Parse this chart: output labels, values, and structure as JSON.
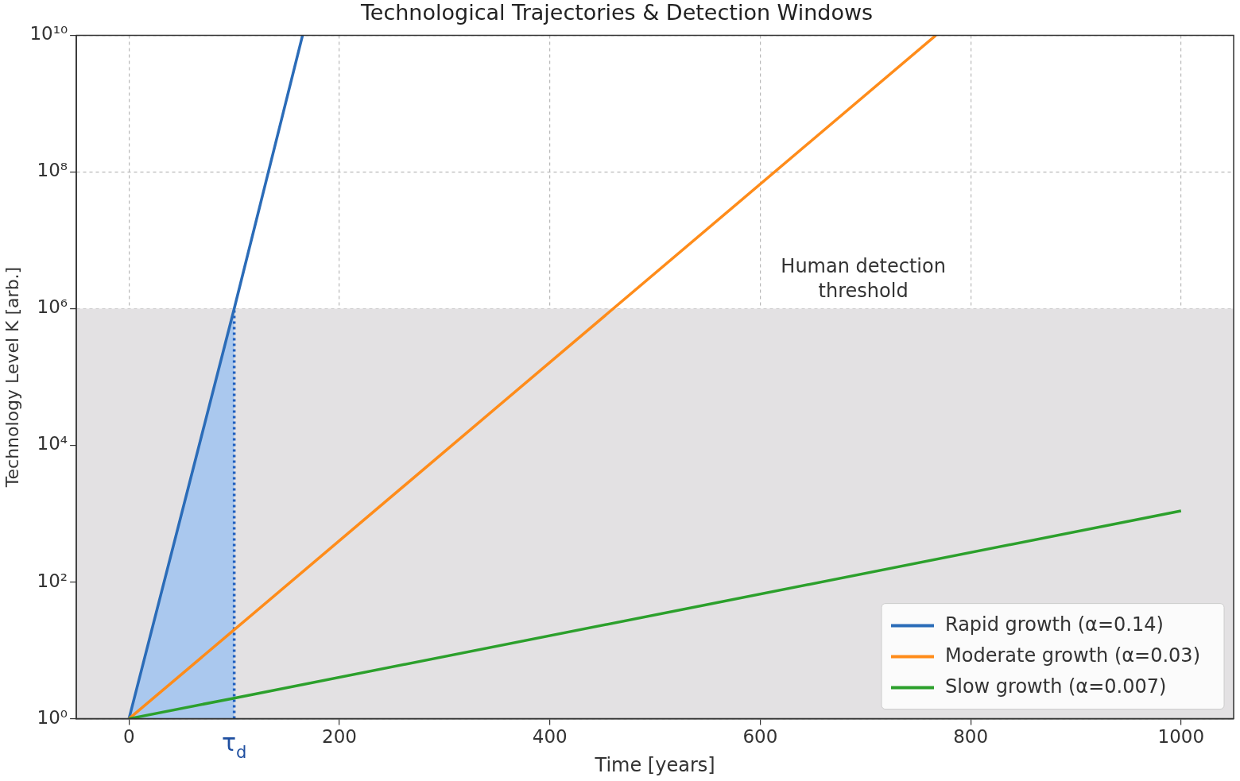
{
  "chart_data": {
    "type": "line",
    "title": "Technological Trajectories & Detection Windows",
    "xlabel": "Time [years]",
    "ylabel": "Technology Level K [arb.]",
    "log": "y",
    "grid": true,
    "legend": "bottom right",
    "xlim": [
      -50,
      1050
    ],
    "xticks": [
      0,
      200,
      400,
      600,
      800,
      1000
    ],
    "ylim": [
      1,
      10000000000
    ],
    "yticks": [
      {
        "value": 1,
        "label": "10⁰"
      },
      {
        "value": 100,
        "label": "10²"
      },
      {
        "value": 10000,
        "label": "10⁴"
      },
      {
        "value": 1000000,
        "label": "10⁶"
      },
      {
        "value": 100000000,
        "label": "10⁸"
      },
      {
        "value": 10000000000,
        "label": "10¹⁰"
      }
    ],
    "bands": [
      {
        "axis": "y",
        "from": 1,
        "to": 1000000,
        "label": "Human detection threshold",
        "color": "#e3e1e3"
      }
    ],
    "series": [
      {
        "type": "area",
        "color": "#aac8ee",
        "x": [
          0,
          100
        ],
        "values": [
          1,
          1000000
        ]
      },
      {
        "type": "line",
        "color": "#1f5fbf",
        "line_style": "dotted",
        "x": [
          100,
          100
        ],
        "values": [
          1,
          1000000
        ]
      },
      {
        "name": "Rapid growth (α=0.14)",
        "color": "#2b6cb8",
        "x": [
          0,
          100,
          165
        ],
        "values": [
          1,
          1000000,
          10000000000
        ]
      },
      {
        "name": "Moderate growth (α=0.03)",
        "color": "#ff8c1a",
        "x": [
          0,
          100,
          767
        ],
        "values": [
          1,
          20,
          10000000000
        ]
      },
      {
        "name": "Slow growth (α=0.007)",
        "color": "#2ca02c",
        "x": [
          0,
          100,
          1000
        ],
        "values": [
          1,
          2,
          1100
        ]
      }
    ],
    "annotations": [
      {
        "text": "τ$_{d}$",
        "x": 100,
        "y": 1
      }
    ]
  }
}
